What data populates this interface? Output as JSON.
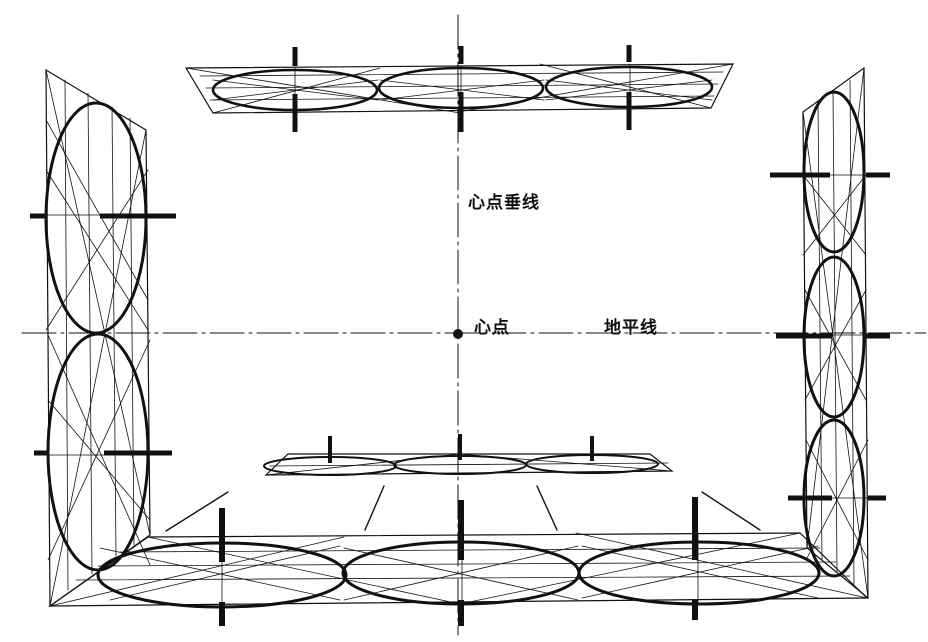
{
  "labels": {
    "center_vertical": "心点垂线",
    "center_point": "心点",
    "horizon_line": "地平线"
  },
  "colors": {
    "ink": "#111111",
    "paper": "#ffffff"
  }
}
